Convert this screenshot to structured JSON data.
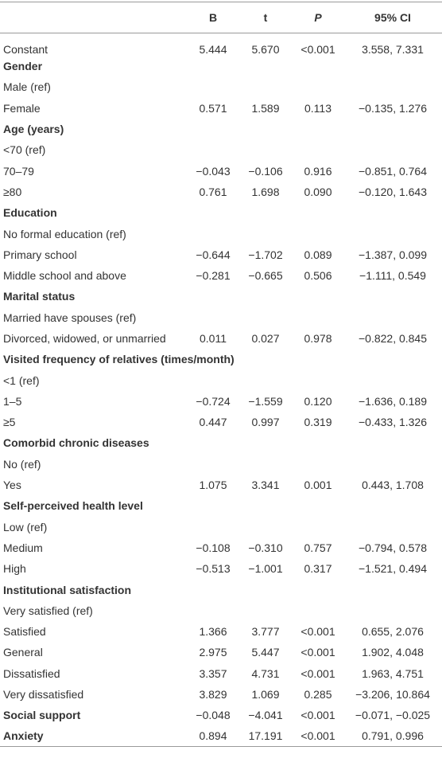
{
  "table": {
    "columns": [
      "B",
      "t",
      "P",
      "95% CI"
    ],
    "italic_columns": [
      2
    ],
    "rows": [
      {
        "label": "Constant",
        "cells": [
          "5.444",
          "5.670",
          "<0.001",
          "3.558, 7.331"
        ]
      },
      {
        "label": "Gender",
        "bold": true
      },
      {
        "label": "Male (ref)"
      },
      {
        "label": "Female",
        "cells": [
          "0.571",
          "1.589",
          "0.113",
          "−0.135, 1.276"
        ]
      },
      {
        "label": "Age (years)",
        "bold": true
      },
      {
        "label": "<70 (ref)"
      },
      {
        "label": "70–79",
        "cells": [
          "−0.043",
          "−0.106",
          "0.916",
          "−0.851, 0.764"
        ]
      },
      {
        "label": "≥80",
        "cells": [
          "0.761",
          "1.698",
          "0.090",
          "−0.120, 1.643"
        ]
      },
      {
        "label": "Education",
        "bold": true
      },
      {
        "label": "No formal education (ref)"
      },
      {
        "label": "Primary school",
        "cells": [
          "−0.644",
          "−1.702",
          "0.089",
          "−1.387, 0.099"
        ]
      },
      {
        "label": "Middle school and above",
        "cells": [
          "−0.281",
          "−0.665",
          "0.506",
          "−1.111, 0.549"
        ]
      },
      {
        "label": "Marital status",
        "bold": true
      },
      {
        "label": "Married have spouses (ref)"
      },
      {
        "label": "Divorced, widowed, or unmarried",
        "cells": [
          "0.011",
          "0.027",
          "0.978",
          "−0.822, 0.845"
        ]
      },
      {
        "label": "Visited frequency of relatives (times/month)",
        "bold": true
      },
      {
        "label": "<1 (ref)"
      },
      {
        "label": "1–5",
        "cells": [
          "−0.724",
          "−1.559",
          "0.120",
          "−1.636, 0.189"
        ]
      },
      {
        "label": "≥5",
        "cells": [
          "0.447",
          "0.997",
          "0.319",
          "−0.433, 1.326"
        ]
      },
      {
        "label": "Comorbid chronic diseases",
        "bold": true
      },
      {
        "label": "No (ref)"
      },
      {
        "label": "Yes",
        "cells": [
          "1.075",
          "3.341",
          "0.001",
          "0.443, 1.708"
        ]
      },
      {
        "label": "Self-perceived health level",
        "bold": true
      },
      {
        "label": "Low (ref)"
      },
      {
        "label": "Medium",
        "cells": [
          "−0.108",
          "−0.310",
          "0.757",
          "−0.794, 0.578"
        ]
      },
      {
        "label": "High",
        "cells": [
          "−0.513",
          "−1.001",
          "0.317",
          "−1.521, 0.494"
        ]
      },
      {
        "label": "Institutional satisfaction",
        "bold": true
      },
      {
        "label": "Very satisfied (ref)"
      },
      {
        "label": "Satisfied",
        "cells": [
          "1.366",
          "3.777",
          "<0.001",
          "0.655, 2.076"
        ]
      },
      {
        "label": "General",
        "cells": [
          "2.975",
          "5.447",
          "<0.001",
          "1.902, 4.048"
        ]
      },
      {
        "label": "Dissatisfied",
        "cells": [
          "3.357",
          "4.731",
          "<0.001",
          "1.963, 4.751"
        ]
      },
      {
        "label": "Very dissatisfied",
        "cells": [
          "3.829",
          "1.069",
          "0.285",
          "−3.206, 10.864"
        ]
      },
      {
        "label": "Social support",
        "bold": true,
        "cells": [
          "−0.048",
          "−4.041",
          "<0.001",
          "−0.071, −0.025"
        ]
      },
      {
        "label": "Anxiety",
        "bold": true,
        "cells": [
          "0.894",
          "17.191",
          "<0.001",
          "0.791, 0.996"
        ]
      }
    ]
  }
}
